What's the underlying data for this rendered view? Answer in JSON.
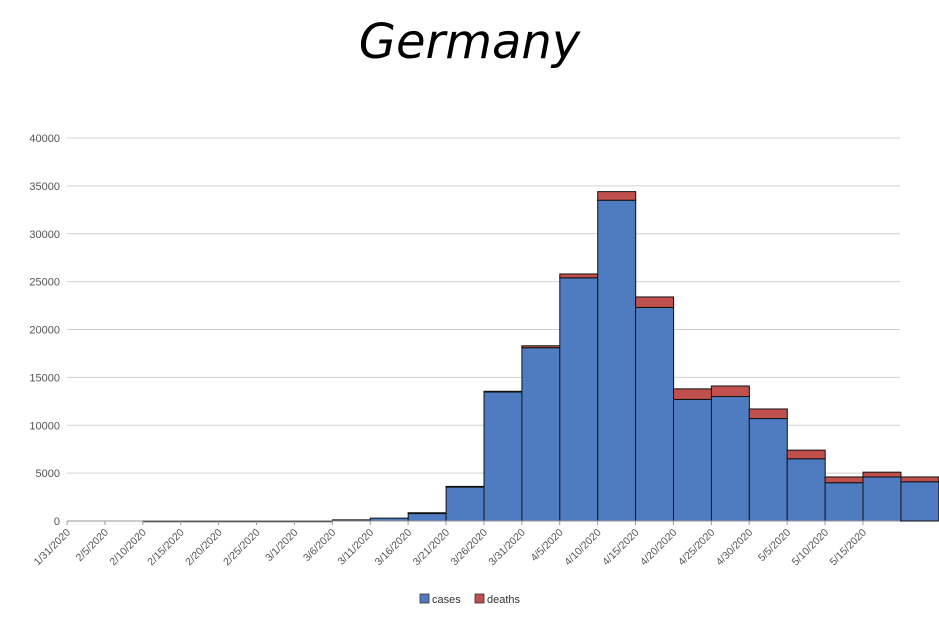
{
  "chart_data": {
    "type": "bar",
    "stacked": true,
    "title": "Germany",
    "xlabel": "",
    "ylabel": "",
    "ylim": [
      0,
      40000
    ],
    "yticks": [
      "0",
      "5000",
      "10000",
      "15000",
      "20000",
      "25000",
      "30000",
      "35000",
      "40000"
    ],
    "grid": true,
    "legend_position": "bottom",
    "categories": [
      "1/31/2020",
      "2/5/2020",
      "2/10/2020",
      "2/15/2020",
      "2/20/2020",
      "2/25/2020",
      "3/1/2020",
      "3/6/2020",
      "3/11/2020",
      "3/16/2020",
      "3/21/2020",
      "3/26/2020",
      "3/31/2020",
      "4/5/2020",
      "4/10/2020",
      "4/15/2020",
      "4/20/2020",
      "4/25/2020",
      "4/30/2020",
      "5/5/2020",
      "5/10/2020",
      "5/15/2020"
    ],
    "series": [
      {
        "name": "cases",
        "color": "#4f7cc0",
        "values": [
          0,
          10,
          10,
          10,
          10,
          10,
          120,
          300,
          850,
          3600,
          13500,
          18100,
          25400,
          33500,
          22300,
          12700,
          13000,
          10700,
          6500,
          4000,
          4600,
          4100
        ]
      },
      {
        "name": "deaths",
        "color": "#c0504d",
        "values": [
          0,
          0,
          0,
          0,
          0,
          0,
          0,
          0,
          5,
          15,
          50,
          200,
          400,
          900,
          1100,
          1100,
          1100,
          1000,
          900,
          600,
          500,
          500
        ]
      }
    ]
  }
}
